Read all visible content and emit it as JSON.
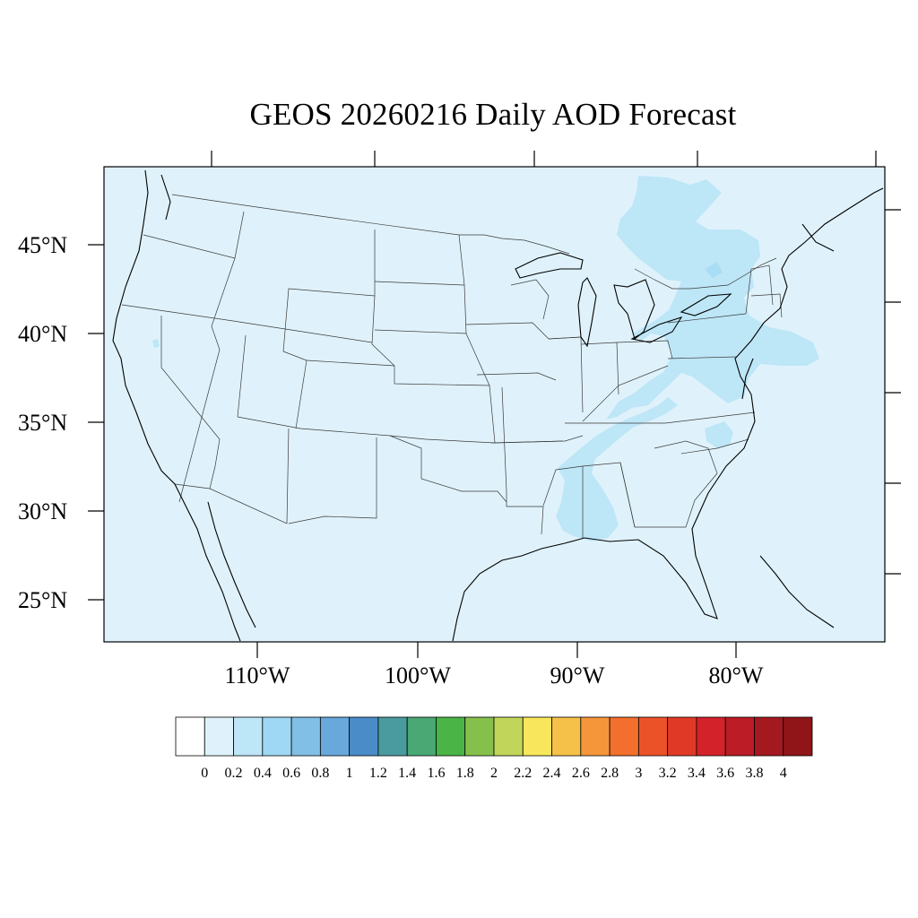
{
  "title": "GEOS 20260216 Daily AOD Forecast",
  "latitude_labels": [
    "45°N",
    "40°N",
    "35°N",
    "30°N",
    "25°N"
  ],
  "longitude_labels": [
    "110°W",
    "100°W",
    "90°W",
    "80°W"
  ],
  "map_extent": {
    "lon_min": -119.7,
    "lon_max": -70.5,
    "lat_min": 22.5,
    "lat_max": 49.4
  },
  "colorbar": {
    "labels": [
      "0",
      "0.2",
      "0.4",
      "0.6",
      "0.8",
      "1",
      "1.2",
      "1.4",
      "1.6",
      "1.8",
      "2",
      "2.2",
      "2.4",
      "2.6",
      "2.8",
      "3",
      "3.2",
      "3.4",
      "3.6",
      "3.8",
      "4"
    ],
    "colors": [
      "#ffffff",
      "#dff2fb",
      "#bde6f7",
      "#9ed8f4",
      "#82bfe6",
      "#68a8db",
      "#4a8cc8",
      "#4a9ba0",
      "#49a874",
      "#4ab447",
      "#86c04c",
      "#c1d55a",
      "#f8e75c",
      "#f6c148",
      "#f5963a",
      "#f26f2d",
      "#eb5228",
      "#e03a27",
      "#d3222a",
      "#bb1c26",
      "#a3191f",
      "#8f1519"
    ]
  },
  "aod_levels": {
    "background": "0.2–0.4",
    "plume": "0.4–0.6"
  }
}
